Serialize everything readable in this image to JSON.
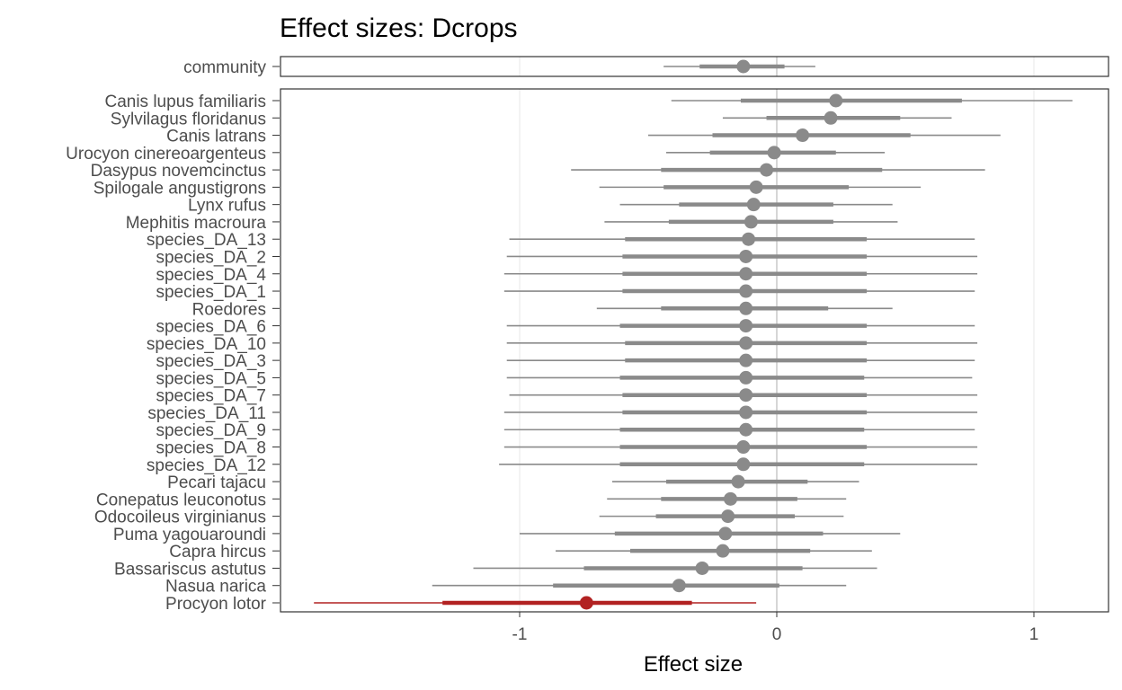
{
  "chart_data": {
    "type": "forest",
    "title": "Effect sizes: Dcrops",
    "xlabel": "Effect size",
    "xlim": [
      -1.9,
      1.3
    ],
    "x_ticks": [
      -1,
      0,
      1
    ],
    "x_tick_labels": [
      "-1",
      "0",
      "1"
    ],
    "grid": "vertical major lines",
    "colors": {
      "default": "#8a8a8a",
      "highlight": "#b22222",
      "grid": "#ebebeb",
      "panel_border": "#333333"
    },
    "community": {
      "label": "community",
      "estimate": -0.13,
      "ci50": [
        -0.3,
        0.03
      ],
      "ci95": [
        -0.44,
        0.15
      ]
    },
    "species": [
      {
        "label": "Canis lupus familiaris",
        "estimate": 0.23,
        "ci50": [
          -0.14,
          0.72
        ],
        "ci95": [
          -0.41,
          1.15
        ]
      },
      {
        "label": "Sylvilagus floridanus",
        "estimate": 0.21,
        "ci50": [
          -0.04,
          0.48
        ],
        "ci95": [
          -0.21,
          0.68
        ]
      },
      {
        "label": "Canis latrans",
        "estimate": 0.1,
        "ci50": [
          -0.25,
          0.52
        ],
        "ci95": [
          -0.5,
          0.87
        ]
      },
      {
        "label": "Urocyon cinereoargenteus",
        "estimate": -0.01,
        "ci50": [
          -0.26,
          0.23
        ],
        "ci95": [
          -0.43,
          0.42
        ]
      },
      {
        "label": "Dasypus novemcinctus",
        "estimate": -0.04,
        "ci50": [
          -0.45,
          0.41
        ],
        "ci95": [
          -0.8,
          0.81
        ]
      },
      {
        "label": "Spilogale angustigrons",
        "estimate": -0.08,
        "ci50": [
          -0.44,
          0.28
        ],
        "ci95": [
          -0.69,
          0.56
        ]
      },
      {
        "label": "Lynx rufus",
        "estimate": -0.09,
        "ci50": [
          -0.38,
          0.22
        ],
        "ci95": [
          -0.61,
          0.45
        ]
      },
      {
        "label": "Mephitis macroura",
        "estimate": -0.1,
        "ci50": [
          -0.42,
          0.22
        ],
        "ci95": [
          -0.67,
          0.47
        ]
      },
      {
        "label": "species_DA_13",
        "estimate": -0.11,
        "ci50": [
          -0.59,
          0.35
        ],
        "ci95": [
          -1.04,
          0.77
        ]
      },
      {
        "label": "species_DA_2",
        "estimate": -0.12,
        "ci50": [
          -0.6,
          0.35
        ],
        "ci95": [
          -1.05,
          0.78
        ]
      },
      {
        "label": "species_DA_4",
        "estimate": -0.12,
        "ci50": [
          -0.6,
          0.35
        ],
        "ci95": [
          -1.06,
          0.78
        ]
      },
      {
        "label": "species_DA_1",
        "estimate": -0.12,
        "ci50": [
          -0.6,
          0.35
        ],
        "ci95": [
          -1.06,
          0.77
        ]
      },
      {
        "label": "Roedores",
        "estimate": -0.12,
        "ci50": [
          -0.45,
          0.2
        ],
        "ci95": [
          -0.7,
          0.45
        ]
      },
      {
        "label": "species_DA_6",
        "estimate": -0.12,
        "ci50": [
          -0.61,
          0.35
        ],
        "ci95": [
          -1.05,
          0.77
        ]
      },
      {
        "label": "species_DA_10",
        "estimate": -0.12,
        "ci50": [
          -0.59,
          0.35
        ],
        "ci95": [
          -1.05,
          0.78
        ]
      },
      {
        "label": "species_DA_3",
        "estimate": -0.12,
        "ci50": [
          -0.59,
          0.35
        ],
        "ci95": [
          -1.05,
          0.77
        ]
      },
      {
        "label": "species_DA_5",
        "estimate": -0.12,
        "ci50": [
          -0.61,
          0.34
        ],
        "ci95": [
          -1.05,
          0.76
        ]
      },
      {
        "label": "species_DA_7",
        "estimate": -0.12,
        "ci50": [
          -0.6,
          0.35
        ],
        "ci95": [
          -1.04,
          0.78
        ]
      },
      {
        "label": "species_DA_11",
        "estimate": -0.12,
        "ci50": [
          -0.6,
          0.35
        ],
        "ci95": [
          -1.06,
          0.78
        ]
      },
      {
        "label": "species_DA_9",
        "estimate": -0.12,
        "ci50": [
          -0.61,
          0.34
        ],
        "ci95": [
          -1.06,
          0.77
        ]
      },
      {
        "label": "species_DA_8",
        "estimate": -0.13,
        "ci50": [
          -0.61,
          0.35
        ],
        "ci95": [
          -1.06,
          0.78
        ]
      },
      {
        "label": "species_DA_12",
        "estimate": -0.13,
        "ci50": [
          -0.61,
          0.34
        ],
        "ci95": [
          -1.08,
          0.78
        ]
      },
      {
        "label": "Pecari tajacu",
        "estimate": -0.15,
        "ci50": [
          -0.43,
          0.12
        ],
        "ci95": [
          -0.64,
          0.32
        ]
      },
      {
        "label": "Conepatus leuconotus",
        "estimate": -0.18,
        "ci50": [
          -0.45,
          0.08
        ],
        "ci95": [
          -0.66,
          0.27
        ]
      },
      {
        "label": "Odocoileus virginianus",
        "estimate": -0.19,
        "ci50": [
          -0.47,
          0.07
        ],
        "ci95": [
          -0.69,
          0.26
        ]
      },
      {
        "label": "Puma yagouaroundi",
        "estimate": -0.2,
        "ci50": [
          -0.63,
          0.18
        ],
        "ci95": [
          -1.0,
          0.48
        ]
      },
      {
        "label": "Capra hircus",
        "estimate": -0.21,
        "ci50": [
          -0.57,
          0.13
        ],
        "ci95": [
          -0.86,
          0.37
        ]
      },
      {
        "label": "Bassariscus astutus",
        "estimate": -0.29,
        "ci50": [
          -0.75,
          0.1
        ],
        "ci95": [
          -1.18,
          0.39
        ]
      },
      {
        "label": "Nasua narica",
        "estimate": -0.38,
        "ci50": [
          -0.87,
          0.01
        ],
        "ci95": [
          -1.34,
          0.27
        ]
      },
      {
        "label": "Procyon lotor",
        "estimate": -0.74,
        "ci50": [
          -1.3,
          -0.33
        ],
        "ci95": [
          -1.8,
          -0.08
        ],
        "highlight": true
      }
    ]
  }
}
